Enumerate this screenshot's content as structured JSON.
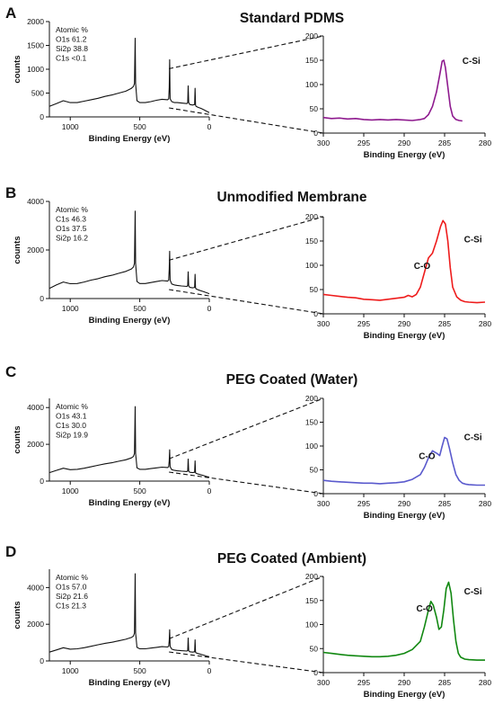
{
  "axis_label_x": "Binding Energy (eV)",
  "axis_label_y": "counts",
  "chart_data": [
    {
      "panel": "A",
      "title": "Standard PDMS",
      "survey": {
        "type": "line",
        "xlabel": "Binding Energy (eV)",
        "ylabel": "counts",
        "xlim": [
          1150,
          0
        ],
        "ylim": [
          0,
          2000
        ],
        "xticks": [
          1000,
          500,
          0
        ],
        "yticks": [
          0,
          500,
          1000,
          1500,
          2000
        ],
        "annotation": [
          "Atomic %",
          "O1s 61.2",
          "Si2p 38.8",
          "C1s <0.1"
        ],
        "x": [
          1150,
          1100,
          1050,
          1000,
          950,
          900,
          850,
          800,
          750,
          700,
          650,
          600,
          560,
          545,
          538,
          533,
          530,
          520,
          500,
          460,
          420,
          380,
          340,
          300,
          292,
          288,
          285,
          282,
          270,
          250,
          230,
          200,
          160,
          155,
          152,
          148,
          140,
          120,
          105,
          102,
          99,
          95,
          80,
          60,
          40,
          20,
          0
        ],
        "values": [
          220,
          280,
          340,
          300,
          300,
          330,
          360,
          390,
          430,
          460,
          500,
          540,
          600,
          640,
          700,
          1650,
          700,
          340,
          300,
          300,
          320,
          350,
          370,
          360,
          380,
          600,
          1200,
          380,
          320,
          300,
          300,
          290,
          280,
          300,
          650,
          300,
          260,
          250,
          260,
          600,
          250,
          220,
          200,
          180,
          150,
          120,
          90
        ]
      },
      "hires": {
        "type": "line",
        "xlabel": "Binding Energy (eV)",
        "ylabel": "",
        "xlim": [
          300,
          280
        ],
        "ylim": [
          0,
          200
        ],
        "xticks": [
          300,
          295,
          290,
          285,
          280
        ],
        "yticks": [
          0,
          50,
          100,
          150,
          200
        ],
        "color": "#8e1a8e",
        "labels": [
          {
            "text": "C-Si",
            "x": 282.8,
            "y": 150
          }
        ],
        "x": [
          300,
          299,
          298,
          297,
          296,
          295,
          294,
          293,
          292,
          291,
          290,
          289,
          288,
          287.5,
          287,
          286.5,
          286,
          285.6,
          285.3,
          285.1,
          284.9,
          284.6,
          284.3,
          284,
          283.6,
          283.2,
          282.8
        ],
        "values": [
          32,
          30,
          31,
          29,
          30,
          28,
          27,
          28,
          27,
          28,
          27,
          26,
          28,
          30,
          38,
          55,
          85,
          120,
          148,
          150,
          135,
          95,
          55,
          35,
          28,
          26,
          25
        ]
      },
      "zoom_link": {
        "from_x": 290,
        "to_hires_x": 300
      }
    },
    {
      "panel": "B",
      "title": "Unmodified Membrane",
      "survey": {
        "type": "line",
        "xlabel": "Binding Energy (eV)",
        "ylabel": "counts",
        "xlim": [
          1150,
          0
        ],
        "ylim": [
          0,
          4000
        ],
        "xticks": [
          1000,
          500,
          0
        ],
        "yticks": [
          0,
          2000,
          4000
        ],
        "annotation": [
          "Atomic %",
          "C1s 46.3",
          "O1s 37.5",
          "Si2p 16.2"
        ],
        "x": [
          1150,
          1100,
          1050,
          1000,
          950,
          900,
          850,
          800,
          750,
          700,
          650,
          600,
          560,
          545,
          538,
          533,
          530,
          520,
          500,
          460,
          420,
          380,
          340,
          300,
          292,
          288,
          285,
          282,
          270,
          250,
          230,
          200,
          160,
          155,
          152,
          148,
          140,
          120,
          105,
          102,
          99,
          95,
          80,
          60,
          40,
          20,
          0
        ],
        "values": [
          420,
          560,
          680,
          610,
          620,
          680,
          760,
          820,
          900,
          960,
          1040,
          1120,
          1220,
          1300,
          1450,
          3600,
          1450,
          700,
          620,
          620,
          660,
          700,
          740,
          720,
          760,
          1200,
          1950,
          760,
          600,
          560,
          540,
          520,
          500,
          540,
          1100,
          520,
          460,
          440,
          460,
          1000,
          440,
          400,
          360,
          320,
          280,
          240,
          200
        ]
      },
      "hires": {
        "type": "line",
        "xlabel": "Binding Energy (eV)",
        "ylabel": "",
        "xlim": [
          300,
          280
        ],
        "ylim": [
          0,
          200
        ],
        "xticks": [
          300,
          295,
          290,
          285,
          280
        ],
        "yticks": [
          0,
          50,
          100,
          150,
          200
        ],
        "color": "#ee1c1c",
        "labels": [
          {
            "text": "C-O",
            "x": 288.8,
            "y": 100
          },
          {
            "text": "C-Si",
            "x": 282.6,
            "y": 155
          }
        ],
        "x": [
          300,
          299,
          298,
          297,
          296,
          295,
          294,
          293,
          292,
          291,
          290,
          289.5,
          289,
          288.5,
          288,
          287.5,
          287,
          286.5,
          286,
          285.5,
          285.2,
          284.9,
          284.6,
          284.3,
          284,
          283.5,
          283,
          282.5,
          282,
          281,
          280
        ],
        "values": [
          40,
          38,
          36,
          34,
          33,
          30,
          29,
          28,
          30,
          32,
          34,
          38,
          35,
          40,
          55,
          85,
          115,
          125,
          150,
          180,
          192,
          185,
          150,
          95,
          55,
          35,
          28,
          25,
          24,
          23,
          24
        ]
      },
      "zoom_link": {
        "from_x": 290,
        "to_hires_x": 300
      }
    },
    {
      "panel": "C",
      "title": "PEG Coated (Water)",
      "survey": {
        "type": "line",
        "xlabel": "Binding Energy (eV)",
        "ylabel": "counts",
        "xlim": [
          1150,
          0
        ],
        "ylim": [
          0,
          4500
        ],
        "xticks": [
          1000,
          500,
          0
        ],
        "yticks": [
          0,
          2000,
          4000
        ],
        "annotation": [
          "Atomic %",
          "O1s 43.1",
          "C1s 30.0",
          "Si2p 19.9"
        ],
        "x": [
          1150,
          1100,
          1050,
          1000,
          950,
          900,
          850,
          800,
          750,
          700,
          650,
          600,
          560,
          545,
          538,
          533,
          530,
          520,
          500,
          460,
          420,
          380,
          340,
          300,
          292,
          288,
          285,
          282,
          270,
          250,
          230,
          200,
          160,
          155,
          152,
          148,
          140,
          120,
          105,
          102,
          99,
          95,
          80,
          60,
          40,
          20,
          0
        ],
        "values": [
          460,
          580,
          700,
          620,
          640,
          700,
          780,
          860,
          940,
          1000,
          1080,
          1160,
          1260,
          1340,
          1500,
          4050,
          1500,
          720,
          640,
          640,
          680,
          720,
          760,
          740,
          780,
          1100,
          1700,
          780,
          620,
          580,
          560,
          540,
          520,
          560,
          1200,
          540,
          480,
          460,
          480,
          1100,
          460,
          420,
          380,
          340,
          300,
          250,
          210
        ]
      },
      "hires": {
        "type": "line",
        "xlabel": "Binding Energy (eV)",
        "ylabel": "",
        "xlim": [
          300,
          280
        ],
        "ylim": [
          0,
          200
        ],
        "xticks": [
          300,
          295,
          290,
          285,
          280
        ],
        "yticks": [
          0,
          50,
          100,
          150,
          200
        ],
        "color": "#5a5acd",
        "labels": [
          {
            "text": "C-O",
            "x": 288.2,
            "y": 80
          },
          {
            "text": "C-Si",
            "x": 282.6,
            "y": 120
          }
        ],
        "x": [
          300,
          299,
          298,
          297,
          296,
          295,
          294,
          293,
          292,
          291,
          290,
          289,
          288,
          287.5,
          287,
          286.5,
          286,
          285.6,
          285.3,
          285,
          284.7,
          284.4,
          284,
          283.6,
          283.2,
          282.8,
          282.4,
          282,
          281,
          280
        ],
        "values": [
          28,
          26,
          25,
          24,
          23,
          22,
          22,
          21,
          22,
          23,
          25,
          30,
          40,
          55,
          75,
          90,
          85,
          80,
          100,
          118,
          115,
          95,
          65,
          40,
          28,
          22,
          20,
          19,
          18,
          18
        ]
      },
      "zoom_link": {
        "from_x": 290,
        "to_hires_x": 300
      }
    },
    {
      "panel": "D",
      "title": "PEG Coated (Ambient)",
      "survey": {
        "type": "line",
        "xlabel": "Binding Energy (eV)",
        "ylabel": "counts",
        "xlim": [
          1150,
          0
        ],
        "ylim": [
          0,
          5000
        ],
        "xticks": [
          1000,
          500,
          0
        ],
        "yticks": [
          0,
          2000,
          4000
        ],
        "annotation": [
          "Atomic %",
          "O1s 57.0",
          "Si2p 21.6",
          "C1s 21.3"
        ],
        "x": [
          1150,
          1100,
          1050,
          1000,
          950,
          900,
          850,
          800,
          750,
          700,
          650,
          600,
          560,
          545,
          538,
          533,
          530,
          520,
          500,
          460,
          420,
          380,
          340,
          300,
          292,
          288,
          285,
          282,
          270,
          250,
          230,
          200,
          160,
          155,
          152,
          148,
          140,
          120,
          105,
          102,
          99,
          95,
          80,
          60,
          40,
          20,
          0
        ],
        "values": [
          480,
          600,
          720,
          640,
          660,
          720,
          800,
          880,
          960,
          1020,
          1100,
          1180,
          1280,
          1360,
          1520,
          4750,
          1520,
          740,
          660,
          660,
          700,
          740,
          780,
          760,
          800,
          1100,
          1700,
          800,
          640,
          600,
          580,
          560,
          540,
          580,
          1250,
          560,
          500,
          480,
          500,
          1150,
          480,
          440,
          400,
          360,
          320,
          270,
          230
        ]
      },
      "hires": {
        "type": "line",
        "xlabel": "Binding Energy (eV)",
        "ylabel": "",
        "xlim": [
          300,
          280
        ],
        "ylim": [
          0,
          200
        ],
        "xticks": [
          300,
          295,
          290,
          285,
          280
        ],
        "yticks": [
          0,
          50,
          100,
          150,
          200
        ],
        "color": "#118811",
        "labels": [
          {
            "text": "C-O",
            "x": 288.5,
            "y": 135
          },
          {
            "text": "C-Si",
            "x": 282.6,
            "y": 170
          }
        ],
        "x": [
          300,
          299,
          298,
          297,
          296,
          295,
          294,
          293,
          292,
          291,
          290,
          289,
          288,
          287.5,
          287,
          286.7,
          286.4,
          286,
          285.7,
          285.4,
          285.1,
          284.8,
          284.5,
          284.2,
          283.9,
          283.6,
          283.3,
          283,
          282.5,
          282,
          281,
          280
        ],
        "values": [
          42,
          40,
          38,
          36,
          35,
          34,
          33,
          33,
          34,
          36,
          40,
          48,
          65,
          95,
          130,
          148,
          140,
          115,
          90,
          95,
          130,
          175,
          188,
          165,
          110,
          65,
          40,
          32,
          28,
          27,
          26,
          26
        ]
      },
      "zoom_link": {
        "from_x": 290,
        "to_hires_x": 300
      }
    }
  ]
}
